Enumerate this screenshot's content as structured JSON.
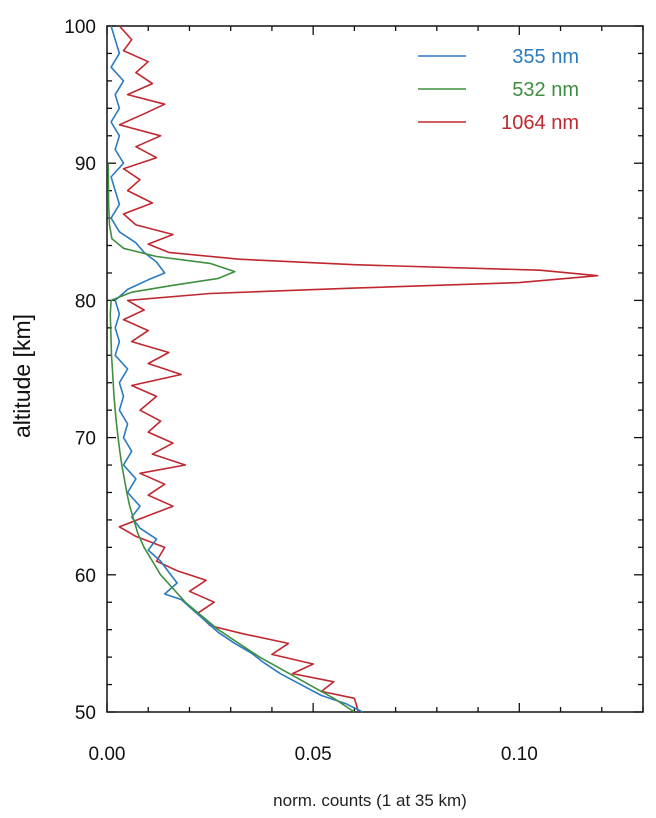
{
  "chart_data": {
    "type": "line",
    "title": "",
    "xlabel": "norm. counts (1 at 35 km)",
    "ylabel": "altitude [km]",
    "xlim": [
      0,
      0.13
    ],
    "ylim": [
      50,
      100
    ],
    "x_ticks": [
      0,
      0.05,
      0.1
    ],
    "x_tick_labels": [
      "0.00",
      "0.05",
      "0.10"
    ],
    "y_ticks": [
      50,
      60,
      70,
      80,
      90,
      100
    ],
    "y_tick_labels": [
      "50",
      "60",
      "70",
      "80",
      "90",
      "100"
    ],
    "legend_position": "top-right",
    "grid": false,
    "series": [
      {
        "name": "355 nm",
        "color": "#2b7bc0",
        "points": [
          [
            0.062,
            50
          ],
          [
            0.058,
            50.6
          ],
          [
            0.052,
            51.2
          ],
          [
            0.047,
            52
          ],
          [
            0.042,
            52.8
          ],
          [
            0.038,
            53.6
          ],
          [
            0.035,
            54.3
          ],
          [
            0.031,
            55
          ],
          [
            0.027,
            55.8
          ],
          [
            0.024,
            56.6
          ],
          [
            0.021,
            57.4
          ],
          [
            0.018,
            58.2
          ],
          [
            0.014,
            58.6
          ],
          [
            0.017,
            59.4
          ],
          [
            0.015,
            60.2
          ],
          [
            0.013,
            61
          ],
          [
            0.01,
            61.8
          ],
          [
            0.012,
            62.6
          ],
          [
            0.008,
            63.4
          ],
          [
            0.006,
            64.2
          ],
          [
            0.008,
            65
          ],
          [
            0.005,
            66
          ],
          [
            0.007,
            67
          ],
          [
            0.004,
            68
          ],
          [
            0.006,
            69
          ],
          [
            0.004,
            70
          ],
          [
            0.005,
            71
          ],
          [
            0.003,
            72
          ],
          [
            0.004,
            73
          ],
          [
            0.003,
            74
          ],
          [
            0.005,
            75
          ],
          [
            0.002,
            76
          ],
          [
            0.003,
            77
          ],
          [
            0.002,
            78
          ],
          [
            0.003,
            79
          ],
          [
            0.002,
            80
          ],
          [
            0.005,
            80.8
          ],
          [
            0.01,
            81.5
          ],
          [
            0.014,
            82
          ],
          [
            0.012,
            82.8
          ],
          [
            0.009,
            83.5
          ],
          [
            0.007,
            84.2
          ],
          [
            0.003,
            85
          ],
          [
            0.001,
            86
          ],
          [
            0.003,
            87
          ],
          [
            0.002,
            88
          ],
          [
            0.001,
            89
          ],
          [
            0.004,
            90
          ],
          [
            0.002,
            91
          ],
          [
            0.003,
            92
          ],
          [
            0.001,
            93
          ],
          [
            0.003,
            94
          ],
          [
            0.002,
            95
          ],
          [
            0.004,
            96
          ],
          [
            0.001,
            97
          ],
          [
            0.003,
            98
          ],
          [
            0.002,
            99
          ],
          [
            0.001,
            100
          ]
        ]
      },
      {
        "name": "532 nm",
        "color": "#3f8f3f",
        "points": [
          [
            0.06,
            50
          ],
          [
            0.055,
            51
          ],
          [
            0.049,
            52
          ],
          [
            0.043,
            53
          ],
          [
            0.037,
            54
          ],
          [
            0.032,
            55
          ],
          [
            0.027,
            56
          ],
          [
            0.023,
            57
          ],
          [
            0.019,
            58
          ],
          [
            0.016,
            59
          ],
          [
            0.013,
            60
          ],
          [
            0.011,
            61
          ],
          [
            0.009,
            62
          ],
          [
            0.0075,
            63
          ],
          [
            0.0065,
            64
          ],
          [
            0.0055,
            65
          ],
          [
            0.0048,
            66
          ],
          [
            0.0042,
            67
          ],
          [
            0.0036,
            68
          ],
          [
            0.0031,
            69
          ],
          [
            0.0027,
            70
          ],
          [
            0.0023,
            71
          ],
          [
            0.002,
            72
          ],
          [
            0.0017,
            73
          ],
          [
            0.0015,
            74
          ],
          [
            0.0013,
            75
          ],
          [
            0.0011,
            76
          ],
          [
            0.001,
            77
          ],
          [
            0.0009,
            78
          ],
          [
            0.0008,
            79
          ],
          [
            0.001,
            80
          ],
          [
            0.006,
            80.6
          ],
          [
            0.016,
            81.1
          ],
          [
            0.027,
            81.6
          ],
          [
            0.031,
            82.1
          ],
          [
            0.025,
            82.7
          ],
          [
            0.012,
            83.2
          ],
          [
            0.004,
            83.8
          ],
          [
            0.0012,
            84.5
          ],
          [
            0.0006,
            85.5
          ],
          [
            0.0004,
            87
          ],
          [
            0.0003,
            90
          ]
        ]
      },
      {
        "name": "1064 nm",
        "color": "#c0282f",
        "points": [
          [
            0.061,
            50
          ],
          [
            0.06,
            51
          ],
          [
            0.052,
            51.5
          ],
          [
            0.055,
            52.2
          ],
          [
            0.045,
            52.8
          ],
          [
            0.05,
            53.5
          ],
          [
            0.04,
            54.2
          ],
          [
            0.044,
            55
          ],
          [
            0.033,
            55.7
          ],
          [
            0.025,
            56.3
          ],
          [
            0.022,
            57.2
          ],
          [
            0.026,
            58
          ],
          [
            0.02,
            58.8
          ],
          [
            0.024,
            59.6
          ],
          [
            0.017,
            60.3
          ],
          [
            0.012,
            61
          ],
          [
            0.014,
            62
          ],
          [
            0.007,
            62.8
          ],
          [
            0.003,
            63.5
          ],
          [
            0.009,
            64.2
          ],
          [
            0.016,
            65
          ],
          [
            0.01,
            65.8
          ],
          [
            0.014,
            66.6
          ],
          [
            0.008,
            67.4
          ],
          [
            0.019,
            68
          ],
          [
            0.011,
            68.8
          ],
          [
            0.016,
            69.6
          ],
          [
            0.01,
            70.4
          ],
          [
            0.013,
            71.2
          ],
          [
            0.008,
            72
          ],
          [
            0.012,
            73
          ],
          [
            0.006,
            73.8
          ],
          [
            0.018,
            74.6
          ],
          [
            0.01,
            75.4
          ],
          [
            0.015,
            76.2
          ],
          [
            0.006,
            77
          ],
          [
            0.01,
            77.8
          ],
          [
            0.004,
            78.6
          ],
          [
            0.009,
            79.3
          ],
          [
            0.005,
            80
          ],
          [
            0.025,
            80.5
          ],
          [
            0.06,
            80.9
          ],
          [
            0.1,
            81.3
          ],
          [
            0.119,
            81.8
          ],
          [
            0.105,
            82.2
          ],
          [
            0.06,
            82.6
          ],
          [
            0.032,
            83
          ],
          [
            0.015,
            83.5
          ],
          [
            0.01,
            84.1
          ],
          [
            0.016,
            84.8
          ],
          [
            0.007,
            85.5
          ],
          [
            0.004,
            86.3
          ],
          [
            0.011,
            87.1
          ],
          [
            0.005,
            88
          ],
          [
            0.008,
            88.8
          ],
          [
            0.004,
            89.6
          ],
          [
            0.012,
            90.4
          ],
          [
            0.007,
            91.2
          ],
          [
            0.013,
            92
          ],
          [
            0.003,
            92.8
          ],
          [
            0.009,
            93.6
          ],
          [
            0.014,
            94.3
          ],
          [
            0.005,
            95
          ],
          [
            0.011,
            95.8
          ],
          [
            0.007,
            96.6
          ],
          [
            0.01,
            97.4
          ],
          [
            0.004,
            98.2
          ],
          [
            0.006,
            99
          ],
          [
            0.003,
            100
          ]
        ]
      }
    ]
  }
}
